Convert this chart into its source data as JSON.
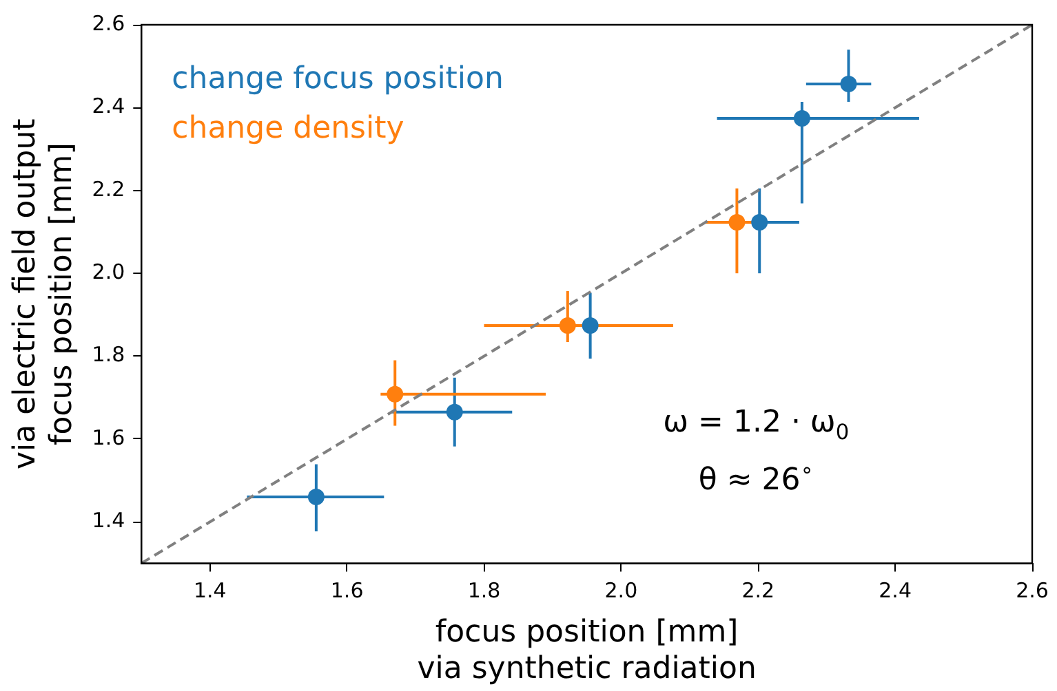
{
  "chart_data": {
    "type": "scatter",
    "xlabel": "focus position [mm]\nvia synthetic radiation",
    "ylabel": "via electric field output\nfocus position [mm]",
    "xlim": [
      1.3,
      2.6
    ],
    "xticks": [
      1.4,
      1.6,
      1.8,
      {
        "value": 2,
        "label": "2.0"
      },
      2.2,
      2.4,
      2.6
    ],
    "ylim": [
      1.3,
      2.6
    ],
    "yticks": [
      1.4,
      1.6,
      1.8,
      {
        "value": 2,
        "label": "2.0"
      },
      2.2,
      2.4,
      2.6
    ],
    "grid": false,
    "legend": "top left",
    "marker": "circle",
    "annotations": [
      "ω = 1.2 · ω$_{0}$",
      "θ ≈ 26$^{∘}$"
    ],
    "series": [
      {
        "name": "change focus position",
        "color": "#1f77b4",
        "x": [
          1.555,
          1.757,
          1.955,
          2.202,
          2.264,
          2.332
        ],
        "values": [
          1.46,
          1.665,
          1.874,
          2.123,
          2.374,
          2.457
        ],
        "xerrors": [
          [
            1.454,
            1.654
          ],
          [
            1.666,
            1.841
          ],
          null,
          [
            2.124,
            2.26
          ],
          [
            2.14,
            2.435
          ],
          [
            2.27,
            2.365
          ]
        ],
        "errors": [
          [
            1.377,
            1.539
          ],
          [
            1.582,
            1.748
          ],
          [
            1.794,
            1.953
          ],
          [
            2.0,
            2.205
          ],
          [
            2.169,
            2.414
          ],
          [
            2.414,
            2.54
          ]
        ]
      },
      {
        "name": "change density",
        "color": "#ff7f0e",
        "x": [
          1.67,
          1.922,
          2.169
        ],
        "values": [
          1.708,
          1.874,
          2.123
        ],
        "xerrors": [
          [
            1.649,
            1.89
          ],
          [
            1.8,
            2.076
          ],
          [
            2.124,
            2.206
          ]
        ],
        "errors": [
          [
            1.632,
            1.79
          ],
          [
            1.834,
            1.957
          ],
          [
            2.0,
            2.205
          ]
        ]
      },
      {
        "type": "line",
        "color": "#808080",
        "line_style": "dashed",
        "marker": "none",
        "x": [
          1.3,
          2.6
        ],
        "values": [
          1.3,
          2.6
        ]
      }
    ]
  }
}
